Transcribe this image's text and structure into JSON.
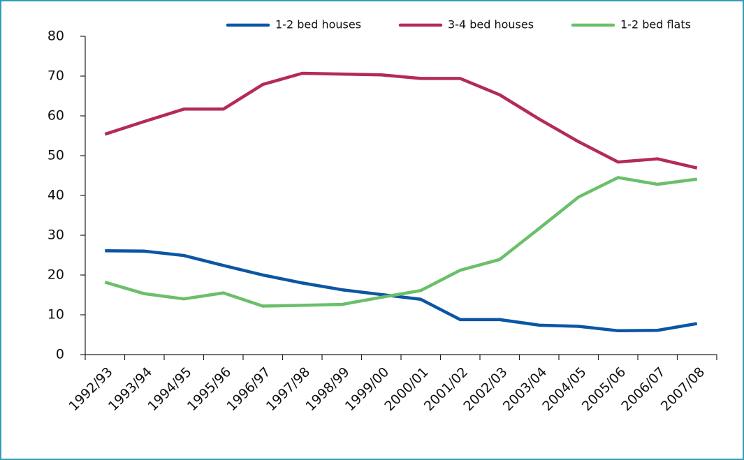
{
  "chart_data": {
    "type": "line",
    "categories": [
      "1992/93",
      "1993/94",
      "1994/95",
      "1995/96",
      "1996/97",
      "1997/98",
      "1998/99",
      "1999/00",
      "2000/01",
      "2001/02",
      "2002/03",
      "2003/04",
      "2004/05",
      "2005/06",
      "2006/07",
      "2007/08"
    ],
    "series": [
      {
        "name": "1-2 bed houses",
        "color": "#0b56a4",
        "values": [
          26.1,
          26.0,
          24.9,
          22.4,
          20.0,
          18.0,
          16.3,
          15.1,
          13.9,
          8.8,
          8.8,
          7.4,
          7.1,
          6.0,
          6.1,
          7.8
        ]
      },
      {
        "name": "3-4 bed houses",
        "color": "#b32a5b",
        "values": [
          55.4,
          58.6,
          61.7,
          61.7,
          67.9,
          70.7,
          70.5,
          70.3,
          69.4,
          69.4,
          65.3,
          59.2,
          53.5,
          48.4,
          49.2,
          46.9
        ]
      },
      {
        "name": "1-2 bed flats",
        "color": "#6bbf6a",
        "values": [
          18.2,
          15.3,
          14.0,
          15.5,
          12.2,
          12.4,
          12.6,
          14.4,
          16.1,
          21.2,
          23.9,
          31.7,
          39.6,
          44.5,
          42.8,
          44.1
        ]
      }
    ],
    "ylim": [
      0,
      80
    ],
    "yticks": [
      0,
      10,
      20,
      30,
      40,
      50,
      60,
      70,
      80
    ],
    "legend": "top"
  }
}
